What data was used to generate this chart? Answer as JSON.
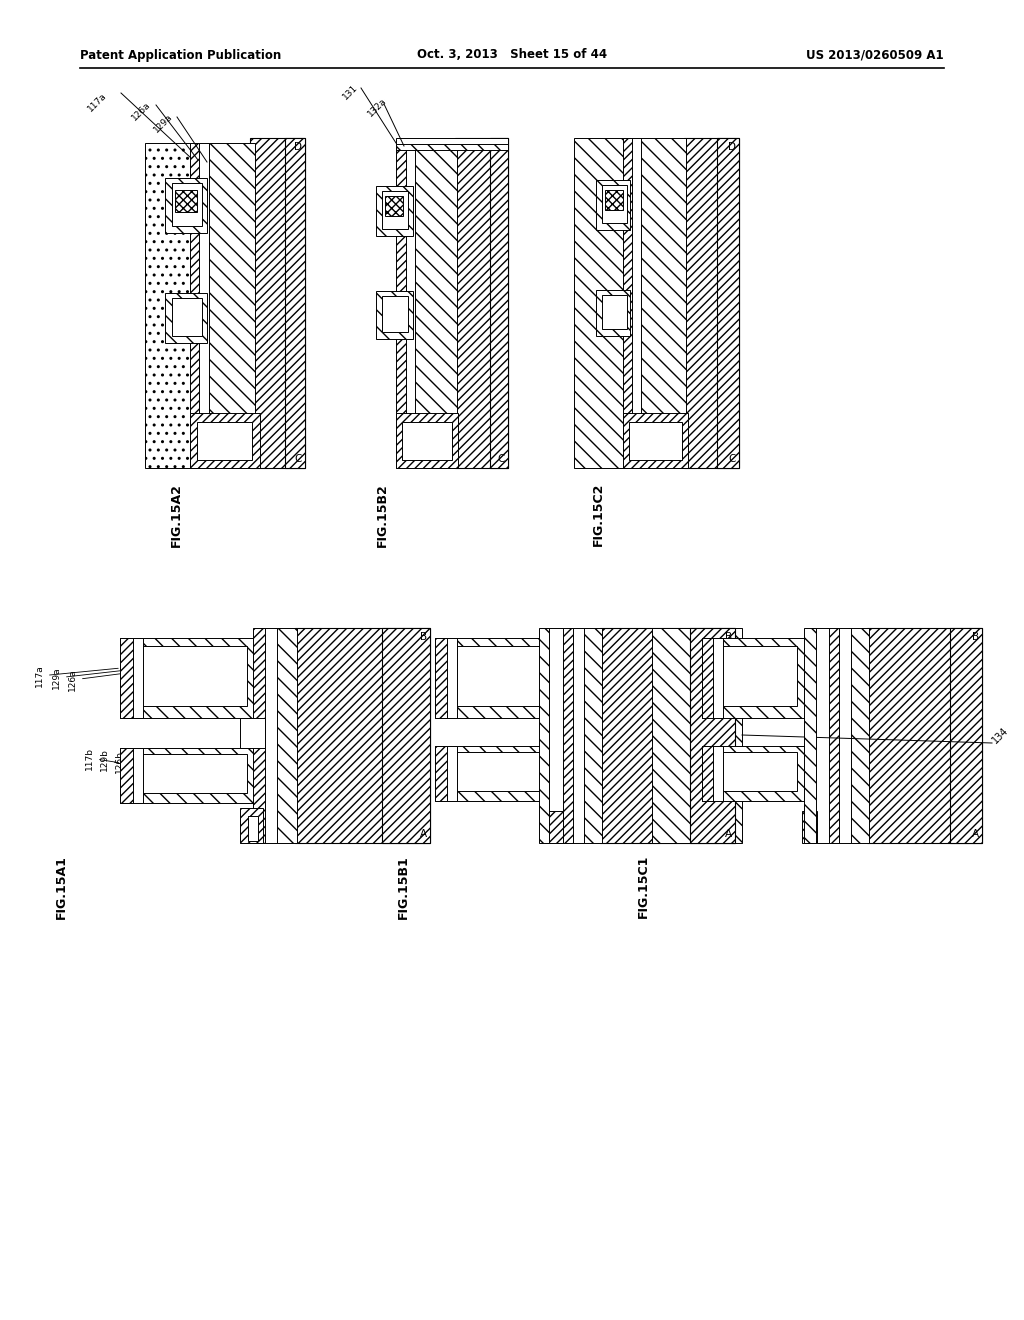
{
  "header_left": "Patent Application Publication",
  "header_center": "Oct. 3, 2013   Sheet 15 of 44",
  "header_right": "US 2013/0260509 A1",
  "bg_color": "#ffffff"
}
